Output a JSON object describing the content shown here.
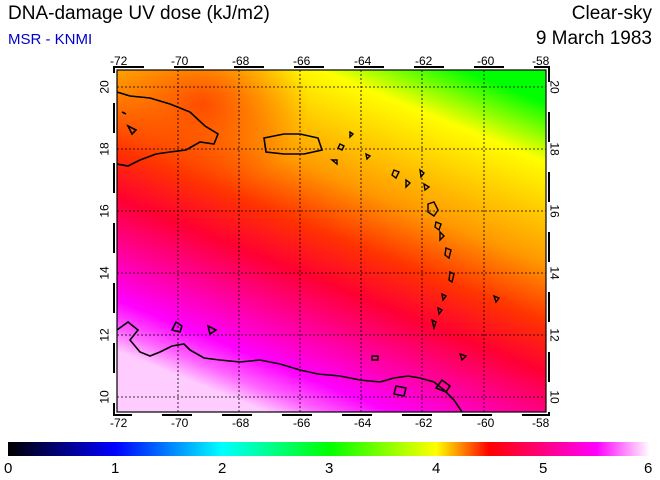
{
  "header": {
    "title": "DNA-damage UV dose (kJ/m2)",
    "subtitle": "MSR - KNMI",
    "sky_type": "Clear-sky",
    "date": "9 March 1983"
  },
  "map": {
    "lon_range": [
      -72,
      -58
    ],
    "lat_range": [
      9.5,
      20.5
    ],
    "lon_ticks": [
      "-72",
      "-70",
      "-68",
      "-66",
      "-64",
      "-62",
      "-60",
      "-58"
    ],
    "lat_ticks": [
      "10",
      "12",
      "14",
      "16",
      "18",
      "20"
    ],
    "grid": true,
    "gradient_colors": [
      "#00ff00",
      "#ffff00",
      "#ffcc00",
      "#ff9900",
      "#ff3300",
      "#ff0033",
      "#ff0099",
      "#ff00ff",
      "#ff66ff",
      "#ffccff"
    ]
  },
  "colorbar": {
    "labels": [
      "0",
      "1",
      "2",
      "3",
      "4",
      "5",
      "6"
    ],
    "colors": [
      "#000000",
      "#0000ff",
      "#00ffff",
      "#00ff00",
      "#ffff00",
      "#ff0000",
      "#ff00ff",
      "#ffffff"
    ]
  }
}
